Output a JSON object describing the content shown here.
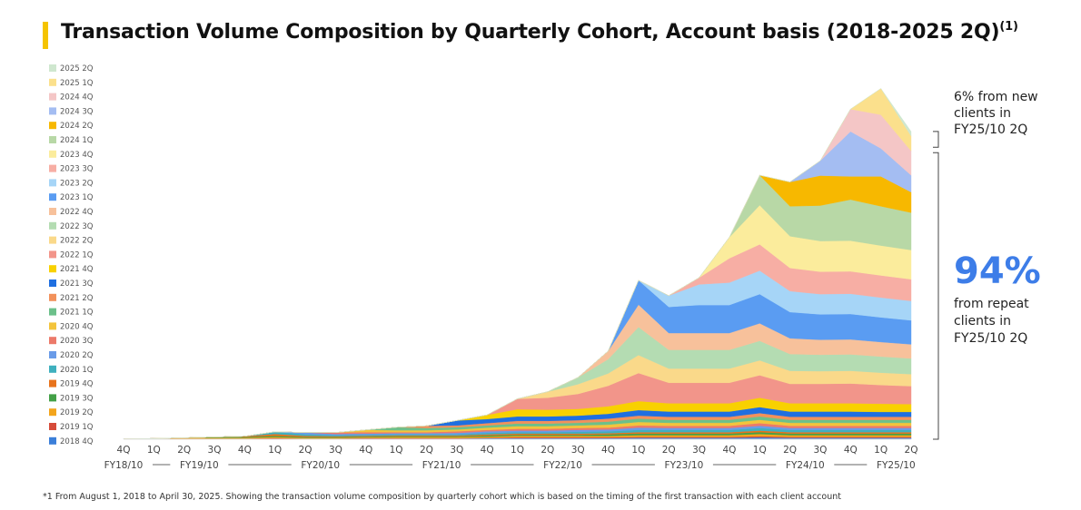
{
  "title": "Transaction Volume Composition by Quarterly Cohort, Account basis (2018-2025 2Q)",
  "title_sup": "(1)",
  "footnote": "*1 From August 1, 2018 to April 30, 2025. Showing the transaction volume composition by quarterly cohort which is based on the timing of the first transaction with each client account",
  "annotations": {
    "new_line1": "6% from new",
    "new_line2": "clients in",
    "new_line3": "FY25/10 2Q",
    "repeat_pct": "94%",
    "repeat_line1": "from repeat",
    "repeat_line2": "clients in",
    "repeat_line3": "FY25/10 2Q",
    "accent_color": "#3d7de8"
  },
  "chart_data": {
    "type": "area",
    "stacked": true,
    "title": "Transaction Volume Composition by Quarterly Cohort, Account basis (2018-2025 2Q)",
    "xlabel": "",
    "ylabel": "",
    "ylim": [
      0,
      100
    ],
    "y_units": "relative volume (no axis shown; estimated, peak = 100)",
    "grid": false,
    "legend_position": "left",
    "categories": [
      "4Q",
      "1Q",
      "2Q",
      "3Q",
      "4Q",
      "1Q",
      "2Q",
      "3Q",
      "4Q",
      "1Q",
      "2Q",
      "3Q",
      "4Q",
      "1Q",
      "2Q",
      "3Q",
      "4Q",
      "1Q",
      "2Q",
      "3Q",
      "4Q",
      "1Q",
      "2Q",
      "3Q",
      "4Q",
      "1Q",
      "2Q"
    ],
    "fiscal_years": [
      {
        "label": "FY18/10",
        "from": 0,
        "to": 0
      },
      {
        "label": "FY19/10",
        "from": 1,
        "to": 4
      },
      {
        "label": "FY20/10",
        "from": 5,
        "to": 8
      },
      {
        "label": "FY21/10",
        "from": 9,
        "to": 12
      },
      {
        "label": "FY22/10",
        "from": 13,
        "to": 16
      },
      {
        "label": "FY23/10",
        "from": 17,
        "to": 20
      },
      {
        "label": "FY24/10",
        "from": 21,
        "to": 24
      },
      {
        "label": "FY25/10",
        "from": 25,
        "to": 26
      }
    ],
    "series": [
      {
        "name": "2018 4Q",
        "color": "#3b7fd9",
        "values": [
          0.1,
          0.1,
          0.1,
          0.1,
          0.1,
          0.2,
          0.1,
          0.1,
          0.2,
          0.2,
          0.2,
          0.2,
          0.3,
          0.3,
          0.3,
          0.3,
          0.3,
          0.4,
          0.4,
          0.4,
          0.4,
          0.5,
          0.4,
          0.4,
          0.4,
          0.4,
          0.4
        ]
      },
      {
        "name": "2019 1Q",
        "color": "#d64b3a",
        "values": [
          0,
          0.1,
          0.1,
          0.1,
          0.1,
          0.1,
          0.1,
          0.1,
          0.1,
          0.1,
          0.1,
          0.1,
          0.1,
          0.2,
          0.2,
          0.2,
          0.2,
          0.2,
          0.2,
          0.2,
          0.2,
          0.3,
          0.2,
          0.2,
          0.2,
          0.2,
          0.2
        ]
      },
      {
        "name": "2019 2Q",
        "color": "#f3a51c",
        "values": [
          0,
          0,
          0.2,
          0.2,
          0.2,
          0.3,
          0.2,
          0.2,
          0.2,
          0.3,
          0.3,
          0.3,
          0.3,
          0.4,
          0.4,
          0.4,
          0.4,
          0.5,
          0.5,
          0.5,
          0.5,
          0.6,
          0.5,
          0.5,
          0.5,
          0.5,
          0.5
        ]
      },
      {
        "name": "2019 3Q",
        "color": "#43a047",
        "values": [
          0,
          0,
          0,
          0.2,
          0.2,
          0.3,
          0.2,
          0.2,
          0.2,
          0.2,
          0.2,
          0.2,
          0.3,
          0.3,
          0.3,
          0.3,
          0.4,
          0.4,
          0.4,
          0.4,
          0.4,
          0.5,
          0.4,
          0.4,
          0.4,
          0.4,
          0.4
        ]
      },
      {
        "name": "2019 4Q",
        "color": "#e8731c",
        "values": [
          0,
          0,
          0,
          0,
          0.2,
          0.5,
          0.3,
          0.2,
          0.2,
          0.2,
          0.2,
          0.2,
          0.3,
          0.3,
          0.3,
          0.3,
          0.3,
          0.4,
          0.4,
          0.4,
          0.4,
          0.4,
          0.4,
          0.4,
          0.4,
          0.4,
          0.4
        ]
      },
      {
        "name": "2020 1Q",
        "color": "#3fb0be",
        "values": [
          0,
          0,
          0,
          0,
          0,
          0.6,
          0.4,
          0.3,
          0.3,
          0.3,
          0.3,
          0.3,
          0.4,
          0.4,
          0.4,
          0.5,
          0.5,
          0.6,
          0.6,
          0.6,
          0.6,
          0.7,
          0.6,
          0.6,
          0.6,
          0.6,
          0.6
        ]
      },
      {
        "name": "2020 2Q",
        "color": "#6a9be8",
        "values": [
          0,
          0,
          0,
          0,
          0,
          0,
          0.5,
          0.3,
          0.3,
          0.3,
          0.3,
          0.4,
          0.4,
          0.4,
          0.4,
          0.5,
          0.5,
          0.6,
          0.5,
          0.5,
          0.5,
          0.6,
          0.5,
          0.5,
          0.5,
          0.5,
          0.5
        ]
      },
      {
        "name": "2020 3Q",
        "color": "#ec7a6a",
        "values": [
          0,
          0,
          0,
          0,
          0,
          0,
          0,
          0.4,
          0.4,
          0.3,
          0.3,
          0.4,
          0.4,
          0.5,
          0.5,
          0.5,
          0.5,
          0.6,
          0.6,
          0.6,
          0.6,
          0.7,
          0.6,
          0.6,
          0.6,
          0.6,
          0.6
        ]
      },
      {
        "name": "2020 4Q",
        "color": "#f3c43c",
        "values": [
          0,
          0,
          0,
          0,
          0,
          0,
          0,
          0,
          0.6,
          0.5,
          0.5,
          0.5,
          0.6,
          0.7,
          0.7,
          0.7,
          0.8,
          0.9,
          0.8,
          0.8,
          0.8,
          0.9,
          0.8,
          0.8,
          0.8,
          0.8,
          0.8
        ]
      },
      {
        "name": "2021 1Q",
        "color": "#6cc08a",
        "values": [
          0,
          0,
          0,
          0,
          0,
          0,
          0,
          0,
          0,
          0.8,
          0.6,
          0.6,
          0.6,
          0.7,
          0.7,
          0.7,
          0.8,
          0.9,
          0.8,
          0.8,
          0.8,
          0.9,
          0.8,
          0.8,
          0.8,
          0.8,
          0.8
        ]
      },
      {
        "name": "2021 2Q",
        "color": "#f2915b",
        "values": [
          0,
          0,
          0,
          0,
          0,
          0,
          0,
          0,
          0,
          0,
          0.6,
          0.5,
          0.6,
          0.7,
          0.7,
          0.7,
          0.8,
          0.8,
          0.8,
          0.8,
          0.8,
          0.9,
          0.8,
          0.8,
          0.8,
          0.8,
          0.8
        ]
      },
      {
        "name": "2021 3Q",
        "color": "#1f6fe0",
        "values": [
          0,
          0,
          0,
          0,
          0,
          0,
          0,
          0,
          0,
          0,
          0,
          1.3,
          1.1,
          1.2,
          1.2,
          1.2,
          1.3,
          1.5,
          1.4,
          1.4,
          1.4,
          1.6,
          1.4,
          1.4,
          1.4,
          1.3,
          1.3
        ]
      },
      {
        "name": "2021 4Q",
        "color": "#f8d100",
        "values": [
          0,
          0,
          0,
          0,
          0,
          0,
          0,
          0,
          0,
          0,
          0,
          0,
          1.1,
          1.9,
          1.8,
          1.8,
          2.0,
          2.4,
          2.2,
          2.2,
          2.2,
          2.5,
          2.2,
          2.2,
          2.2,
          2.2,
          2.1
        ]
      },
      {
        "name": "2022 1Q",
        "color": "#f2958a",
        "values": [
          0,
          0,
          0,
          0,
          0,
          0,
          0,
          0,
          0,
          0,
          0,
          0,
          0,
          2.8,
          3.2,
          4.0,
          5.5,
          7.5,
          5.5,
          5.5,
          5.5,
          6.0,
          5.2,
          5.2,
          5.3,
          5.0,
          4.8
        ]
      },
      {
        "name": "2022 2Q",
        "color": "#fad98a",
        "values": [
          0,
          0,
          0,
          0,
          0,
          0,
          0,
          0,
          0,
          0,
          0,
          0,
          0,
          0,
          1.6,
          2.6,
          3.3,
          4.8,
          3.8,
          3.8,
          3.8,
          4.0,
          3.5,
          3.4,
          3.4,
          3.3,
          3.2
        ]
      },
      {
        "name": "2022 3Q",
        "color": "#b4dcb2",
        "values": [
          0,
          0,
          0,
          0,
          0,
          0,
          0,
          0,
          0,
          0,
          0,
          0,
          0,
          0,
          0,
          1.8,
          3.8,
          7.5,
          5.0,
          5.0,
          5.0,
          5.2,
          4.5,
          4.4,
          4.4,
          4.3,
          4.2
        ]
      },
      {
        "name": "2022 4Q",
        "color": "#f7c19b",
        "values": [
          0,
          0,
          0,
          0,
          0,
          0,
          0,
          0,
          0,
          0,
          0,
          0,
          0,
          0,
          0,
          0,
          2.2,
          6.0,
          4.5,
          4.5,
          4.5,
          4.7,
          4.2,
          4.0,
          4.0,
          3.9,
          3.8
        ]
      },
      {
        "name": "2023 1Q",
        "color": "#5a9cf2",
        "values": [
          0,
          0,
          0,
          0,
          0,
          0,
          0,
          0,
          0,
          0,
          0,
          0,
          0,
          0,
          0,
          0,
          0,
          6.5,
          7.0,
          7.5,
          7.5,
          7.8,
          7.0,
          6.8,
          6.8,
          6.6,
          6.4
        ]
      },
      {
        "name": "2023 2Q",
        "color": "#a6d5f7",
        "values": [
          0,
          0,
          0,
          0,
          0,
          0,
          0,
          0,
          0,
          0,
          0,
          0,
          0,
          0,
          0,
          0,
          0,
          0,
          3.0,
          5.5,
          6.0,
          6.3,
          5.6,
          5.4,
          5.4,
          5.3,
          5.2
        ]
      },
      {
        "name": "2023 3Q",
        "color": "#f7aea4",
        "values": [
          0,
          0,
          0,
          0,
          0,
          0,
          0,
          0,
          0,
          0,
          0,
          0,
          0,
          0,
          0,
          0,
          0,
          0,
          0,
          1.8,
          6.5,
          7.0,
          6.2,
          6.0,
          6.0,
          5.9,
          5.8
        ]
      },
      {
        "name": "2023 4Q",
        "color": "#fbec9c",
        "values": [
          0,
          0,
          0,
          0,
          0,
          0,
          0,
          0,
          0,
          0,
          0,
          0,
          0,
          0,
          0,
          0,
          0,
          0,
          0,
          0,
          5.6,
          10.5,
          8.5,
          8.2,
          8.2,
          8.0,
          7.8
        ]
      },
      {
        "name": "2024 1Q",
        "color": "#b8d8a6",
        "values": [
          0,
          0,
          0,
          0,
          0,
          0,
          0,
          0,
          0,
          0,
          0,
          0,
          0,
          0,
          0,
          0,
          0,
          0,
          0,
          0,
          0,
          8.0,
          8.0,
          9.5,
          11.0,
          10.5,
          10.0
        ]
      },
      {
        "name": "2024 2Q",
        "color": "#f7b800",
        "values": [
          0,
          0,
          0,
          0,
          0,
          0,
          0,
          0,
          0,
          0,
          0,
          0,
          0,
          0,
          0,
          0,
          0,
          0,
          0,
          0,
          0,
          0,
          6.5,
          8.0,
          6.2,
          8.0,
          5.5
        ]
      },
      {
        "name": "2024 3Q",
        "color": "#a4bdf2",
        "values": [
          0,
          0,
          0,
          0,
          0,
          0,
          0,
          0,
          0,
          0,
          0,
          0,
          0,
          0,
          0,
          0,
          0,
          0,
          0,
          0,
          0,
          0,
          0,
          4.0,
          12.0,
          7.5,
          4.5
        ]
      },
      {
        "name": "2024 4Q",
        "color": "#f4c6c6",
        "values": [
          0,
          0,
          0,
          0,
          0,
          0,
          0,
          0,
          0,
          0,
          0,
          0,
          0,
          0,
          0,
          0,
          0,
          0,
          0,
          0,
          0,
          0,
          0,
          0,
          6.0,
          9.0,
          6.5
        ]
      },
      {
        "name": "2025 1Q",
        "color": "#fbe08c",
        "values": [
          0,
          0,
          0,
          0,
          0,
          0,
          0,
          0,
          0,
          0,
          0,
          0,
          0,
          0,
          0,
          0,
          0,
          0,
          0,
          0,
          0,
          0,
          0,
          0,
          0,
          7.0,
          4.0
        ]
      },
      {
        "name": "2025 2Q",
        "color": "#cfe7cf",
        "values": [
          0,
          0,
          0,
          0,
          0,
          0,
          0,
          0,
          0,
          0,
          0,
          0,
          0,
          0,
          0,
          0,
          0,
          0,
          0,
          0,
          0,
          0,
          0,
          0,
          0,
          0,
          1.2
        ]
      }
    ],
    "legend_order": [
      "2025 2Q",
      "2025 1Q",
      "2024 4Q",
      "2024 3Q",
      "2024 2Q",
      "2024 1Q",
      "2023 4Q",
      "2023 3Q",
      "2023 2Q",
      "2023 1Q",
      "2022 4Q",
      "2022 3Q",
      "2022 2Q",
      "2022 1Q",
      "2021 4Q",
      "2021 3Q",
      "2021 2Q",
      "2021 1Q",
      "2020 4Q",
      "2020 3Q",
      "2020 2Q",
      "2020 1Q",
      "2019 4Q",
      "2019 3Q",
      "2019 2Q",
      "2019 1Q",
      "2018 4Q"
    ],
    "brackets": [
      {
        "label": "6% from new clients in FY25/10 2Q",
        "share_pct": 6
      },
      {
        "label": "94% from repeat clients in FY25/10 2Q",
        "share_pct": 94
      }
    ]
  }
}
